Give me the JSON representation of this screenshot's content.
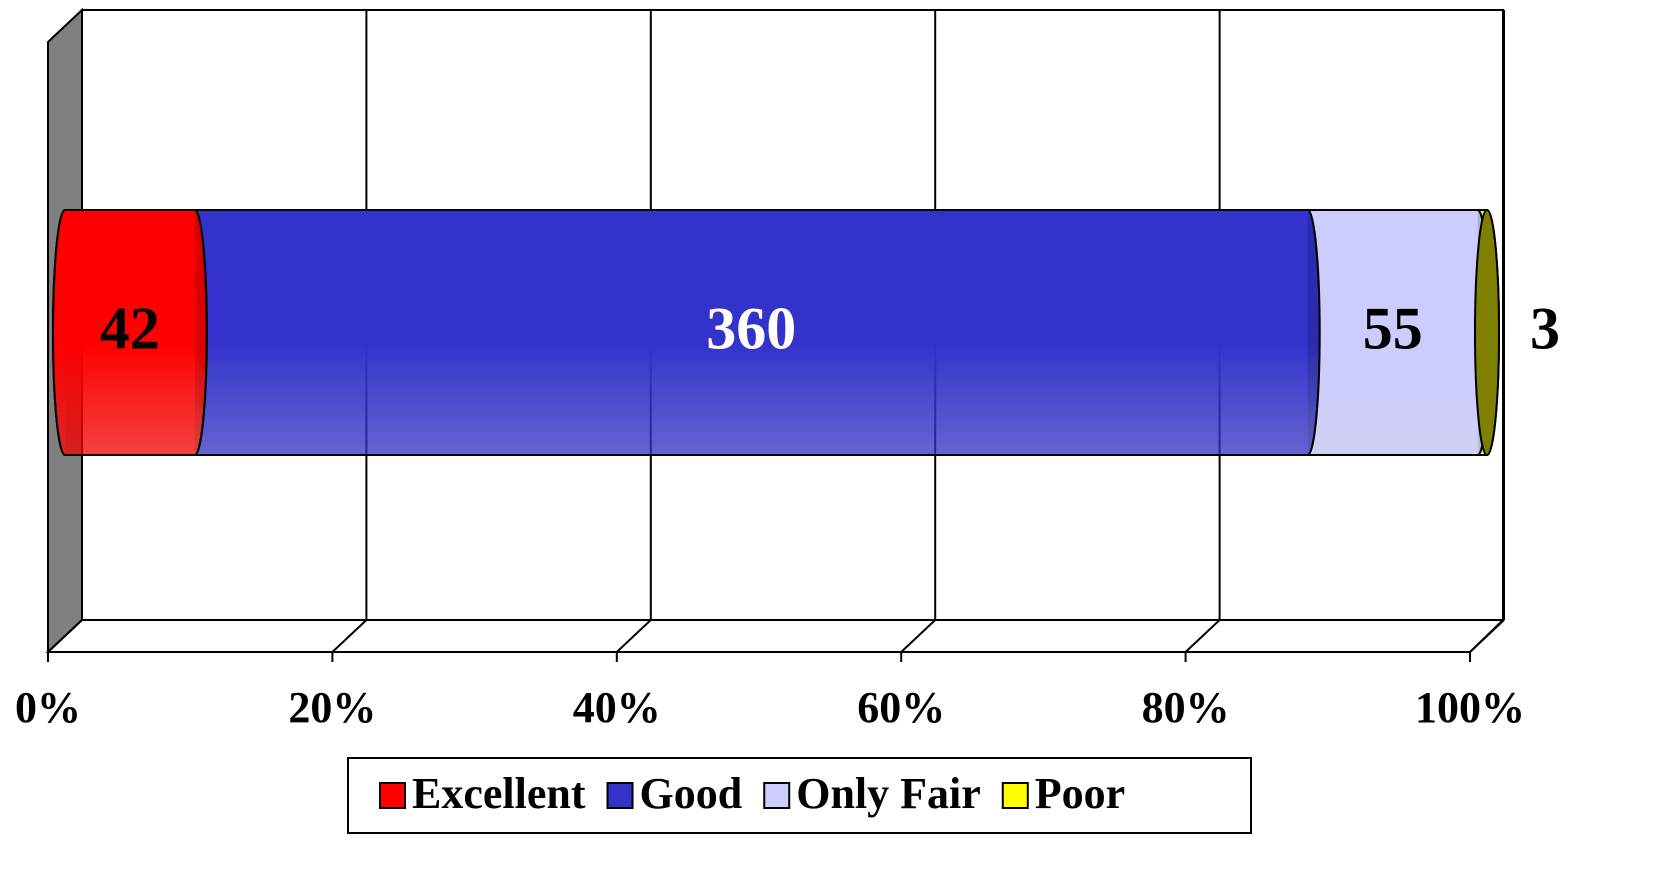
{
  "chart_data": {
    "type": "bar",
    "orientation": "horizontal",
    "stacking": "percent",
    "categories": [
      null
    ],
    "series": [
      {
        "name": "Excellent",
        "color": "#ff0000",
        "label_color": "#000000",
        "values": [
          42
        ]
      },
      {
        "name": "Good",
        "color": "#3333cc",
        "label_color": "#ffffff",
        "values": [
          360
        ]
      },
      {
        "name": "Only Fair",
        "color": "#ccccff",
        "label_color": "#000000",
        "values": [
          55
        ]
      },
      {
        "name": "Poor",
        "color": "#ffff00",
        "label_color": "#000000",
        "values": [
          3
        ]
      }
    ],
    "xlim": [
      0,
      100
    ],
    "xticks": [
      {
        "value": 0,
        "label": "0%"
      },
      {
        "value": 20,
        "label": "20%"
      },
      {
        "value": 40,
        "label": "40%"
      },
      {
        "value": 60,
        "label": "60%"
      },
      {
        "value": 80,
        "label": "80%"
      },
      {
        "value": 100,
        "label": "100%"
      }
    ],
    "grid": true,
    "legend": "bottom"
  }
}
